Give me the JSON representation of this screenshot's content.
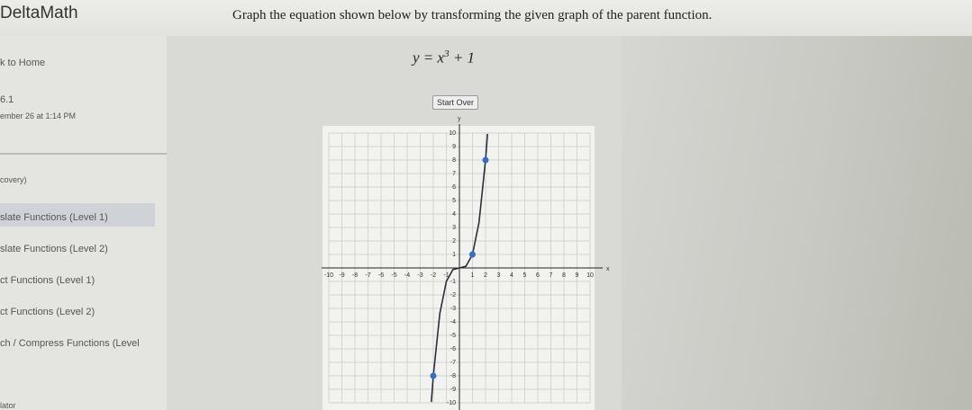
{
  "header": {
    "logo": "DeltaMath",
    "instruction": "Graph the equation shown below by transforming the given graph of the parent function."
  },
  "equation": {
    "base": "y = x",
    "exponent": "3",
    "rest": "+ 1"
  },
  "sidebar": {
    "back": "k to Home",
    "section": "6.1",
    "date": "ember 26 at 1:14 PM",
    "search": "covery)",
    "items": [
      "slate Functions (Level 1)",
      "slate Functions (Level 2)",
      "ct Functions (Level 1)",
      "ct Functions (Level 2)",
      "ch / Compress Functions (Level"
    ],
    "footer": "lator"
  },
  "start_over": "Start Over",
  "graph": {
    "x_label": "x",
    "y_label": "y",
    "xlim": [
      -10,
      10
    ],
    "ylim": [
      -10,
      10
    ],
    "xticks": [
      -10,
      -9,
      -8,
      -7,
      -6,
      -5,
      -4,
      -3,
      -2,
      -1,
      1,
      2,
      3,
      4,
      5,
      6,
      7,
      8,
      9,
      10
    ],
    "yticks": [
      -10,
      -9,
      -8,
      -7,
      -6,
      -5,
      -4,
      -3,
      -2,
      -1,
      1,
      2,
      3,
      4,
      5,
      6,
      7,
      8,
      9,
      10
    ],
    "curve": {
      "x": [
        -2.15,
        -2,
        -1.5,
        -1,
        -0.5,
        0,
        0.5,
        1,
        1.5,
        2,
        2.15
      ],
      "y": [
        -9.94,
        -8,
        -3.375,
        -1,
        -0.125,
        0,
        0.125,
        1,
        3.375,
        8,
        9.94
      ]
    },
    "points": {
      "x": [
        -2,
        1,
        2
      ],
      "y": [
        -8,
        1,
        8
      ]
    }
  }
}
